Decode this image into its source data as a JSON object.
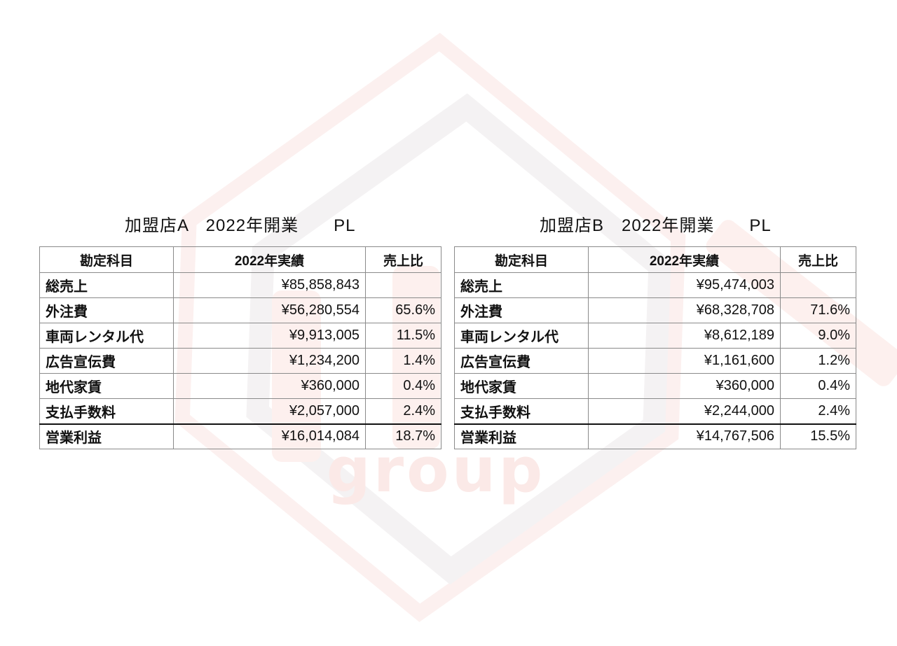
{
  "colors": {
    "page-bg": "#ffffff",
    "text-dark": "#111111",
    "border-gray": "#8a8a8a",
    "border-strong": "#111111"
  },
  "watermark": {
    "text": "group",
    "outer_hex_color": "#fcf0ef",
    "inner_hex_color": "#f4f2f3",
    "mark_color": "#fdf0ee",
    "text_color": "#fbe9e7"
  },
  "columns": [
    "勘定科目",
    "2022年実績",
    "売上比"
  ],
  "tables": [
    {
      "title": "加盟店A　2022年開業　　PL",
      "rows": [
        {
          "label": "総売上",
          "amount": "¥85,858,843",
          "ratio": ""
        },
        {
          "label": "外注費",
          "amount": "¥56,280,554",
          "ratio": "65.6%"
        },
        {
          "label": "車両レンタル代",
          "amount": "¥9,913,005",
          "ratio": "11.5%"
        },
        {
          "label": "広告宣伝費",
          "amount": "¥1,234,200",
          "ratio": "1.4%"
        },
        {
          "label": "地代家賃",
          "amount": "¥360,000",
          "ratio": "0.4%"
        },
        {
          "label": "支払手数料",
          "amount": "¥2,057,000",
          "ratio": "2.4%"
        },
        {
          "label": "営業利益",
          "amount": "¥16,014,084",
          "ratio": "18.7%",
          "emphasis": true
        }
      ]
    },
    {
      "title": "加盟店B　2022年開業　　PL",
      "rows": [
        {
          "label": "総売上",
          "amount": "¥95,474,003",
          "ratio": ""
        },
        {
          "label": "外注費",
          "amount": "¥68,328,708",
          "ratio": "71.6%"
        },
        {
          "label": "車両レンタル代",
          "amount": "¥8,612,189",
          "ratio": "9.0%"
        },
        {
          "label": "広告宣伝費",
          "amount": "¥1,161,600",
          "ratio": "1.2%"
        },
        {
          "label": "地代家賃",
          "amount": "¥360,000",
          "ratio": "0.4%"
        },
        {
          "label": "支払手数料",
          "amount": "¥2,244,000",
          "ratio": "2.4%"
        },
        {
          "label": "営業利益",
          "amount": "¥14,767,506",
          "ratio": "15.5%",
          "emphasis": true
        }
      ]
    }
  ]
}
